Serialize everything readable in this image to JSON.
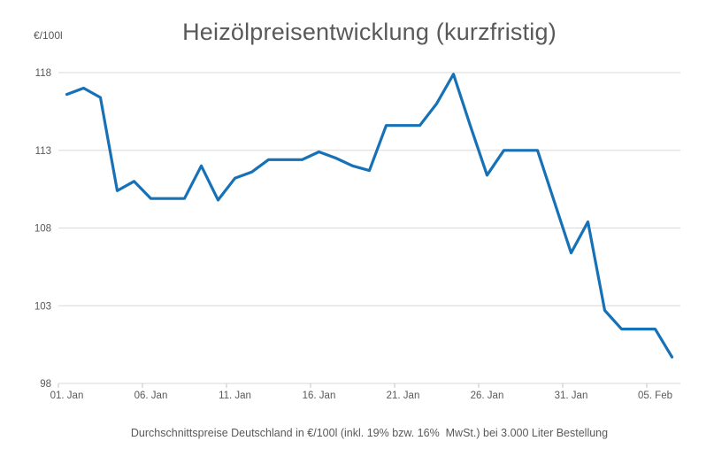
{
  "header": {
    "title": "Heizölpreisentwicklung (kurzfristig)",
    "y_unit_label": "€/100l"
  },
  "footer": {
    "caption": "Durchschnittspreise Deutschland in €/100l (inkl. 19% bzw. 16%  MwSt.) bei 3.000 Liter Bestellung"
  },
  "chart_data": {
    "type": "line",
    "title": "Heizölpreisentwicklung (kurzfristig)",
    "ylabel": "€/100l",
    "xlabel": "",
    "ylim": [
      98,
      118
    ],
    "yticks": [
      118,
      113,
      108,
      103,
      98
    ],
    "grid": "horizontal-only",
    "legend": "none",
    "line_color": "#1771b6",
    "grid_color": "#d9d9d9",
    "text_color": "#595959",
    "categories": [
      "01. Jan",
      "02. Jan",
      "03. Jan",
      "04. Jan",
      "05. Jan",
      "06. Jan",
      "07. Jan",
      "08. Jan",
      "09. Jan",
      "10. Jan",
      "11. Jan",
      "12. Jan",
      "13. Jan",
      "14. Jan",
      "15. Jan",
      "16. Jan",
      "17. Jan",
      "18. Jan",
      "19. Jan",
      "20. Jan",
      "21. Jan",
      "22. Jan",
      "23. Jan",
      "24. Jan",
      "25. Jan",
      "26. Jan",
      "27. Jan",
      "28. Jan",
      "29. Jan",
      "30. Jan",
      "31. Jan",
      "01. Feb",
      "02. Feb",
      "03. Feb",
      "04. Feb",
      "05. Feb",
      "06. Feb"
    ],
    "values": [
      116.6,
      117.0,
      116.4,
      110.4,
      111.0,
      109.9,
      109.9,
      109.9,
      112.0,
      109.8,
      111.2,
      111.6,
      112.4,
      112.4,
      112.4,
      112.9,
      112.5,
      112.0,
      111.7,
      114.6,
      114.6,
      114.6,
      116.0,
      117.9,
      114.6,
      111.4,
      113.0,
      113.0,
      113.0,
      109.7,
      106.4,
      108.4,
      102.7,
      101.5,
      101.5,
      101.5,
      99.7
    ],
    "xtick_indices": [
      0,
      5,
      10,
      15,
      20,
      25,
      30,
      35
    ],
    "xtick_labels": [
      "01. Jan",
      "06. Jan",
      "11. Jan",
      "16. Jan",
      "21. Jan",
      "26. Jan",
      "31. Jan",
      "05. Feb"
    ]
  }
}
